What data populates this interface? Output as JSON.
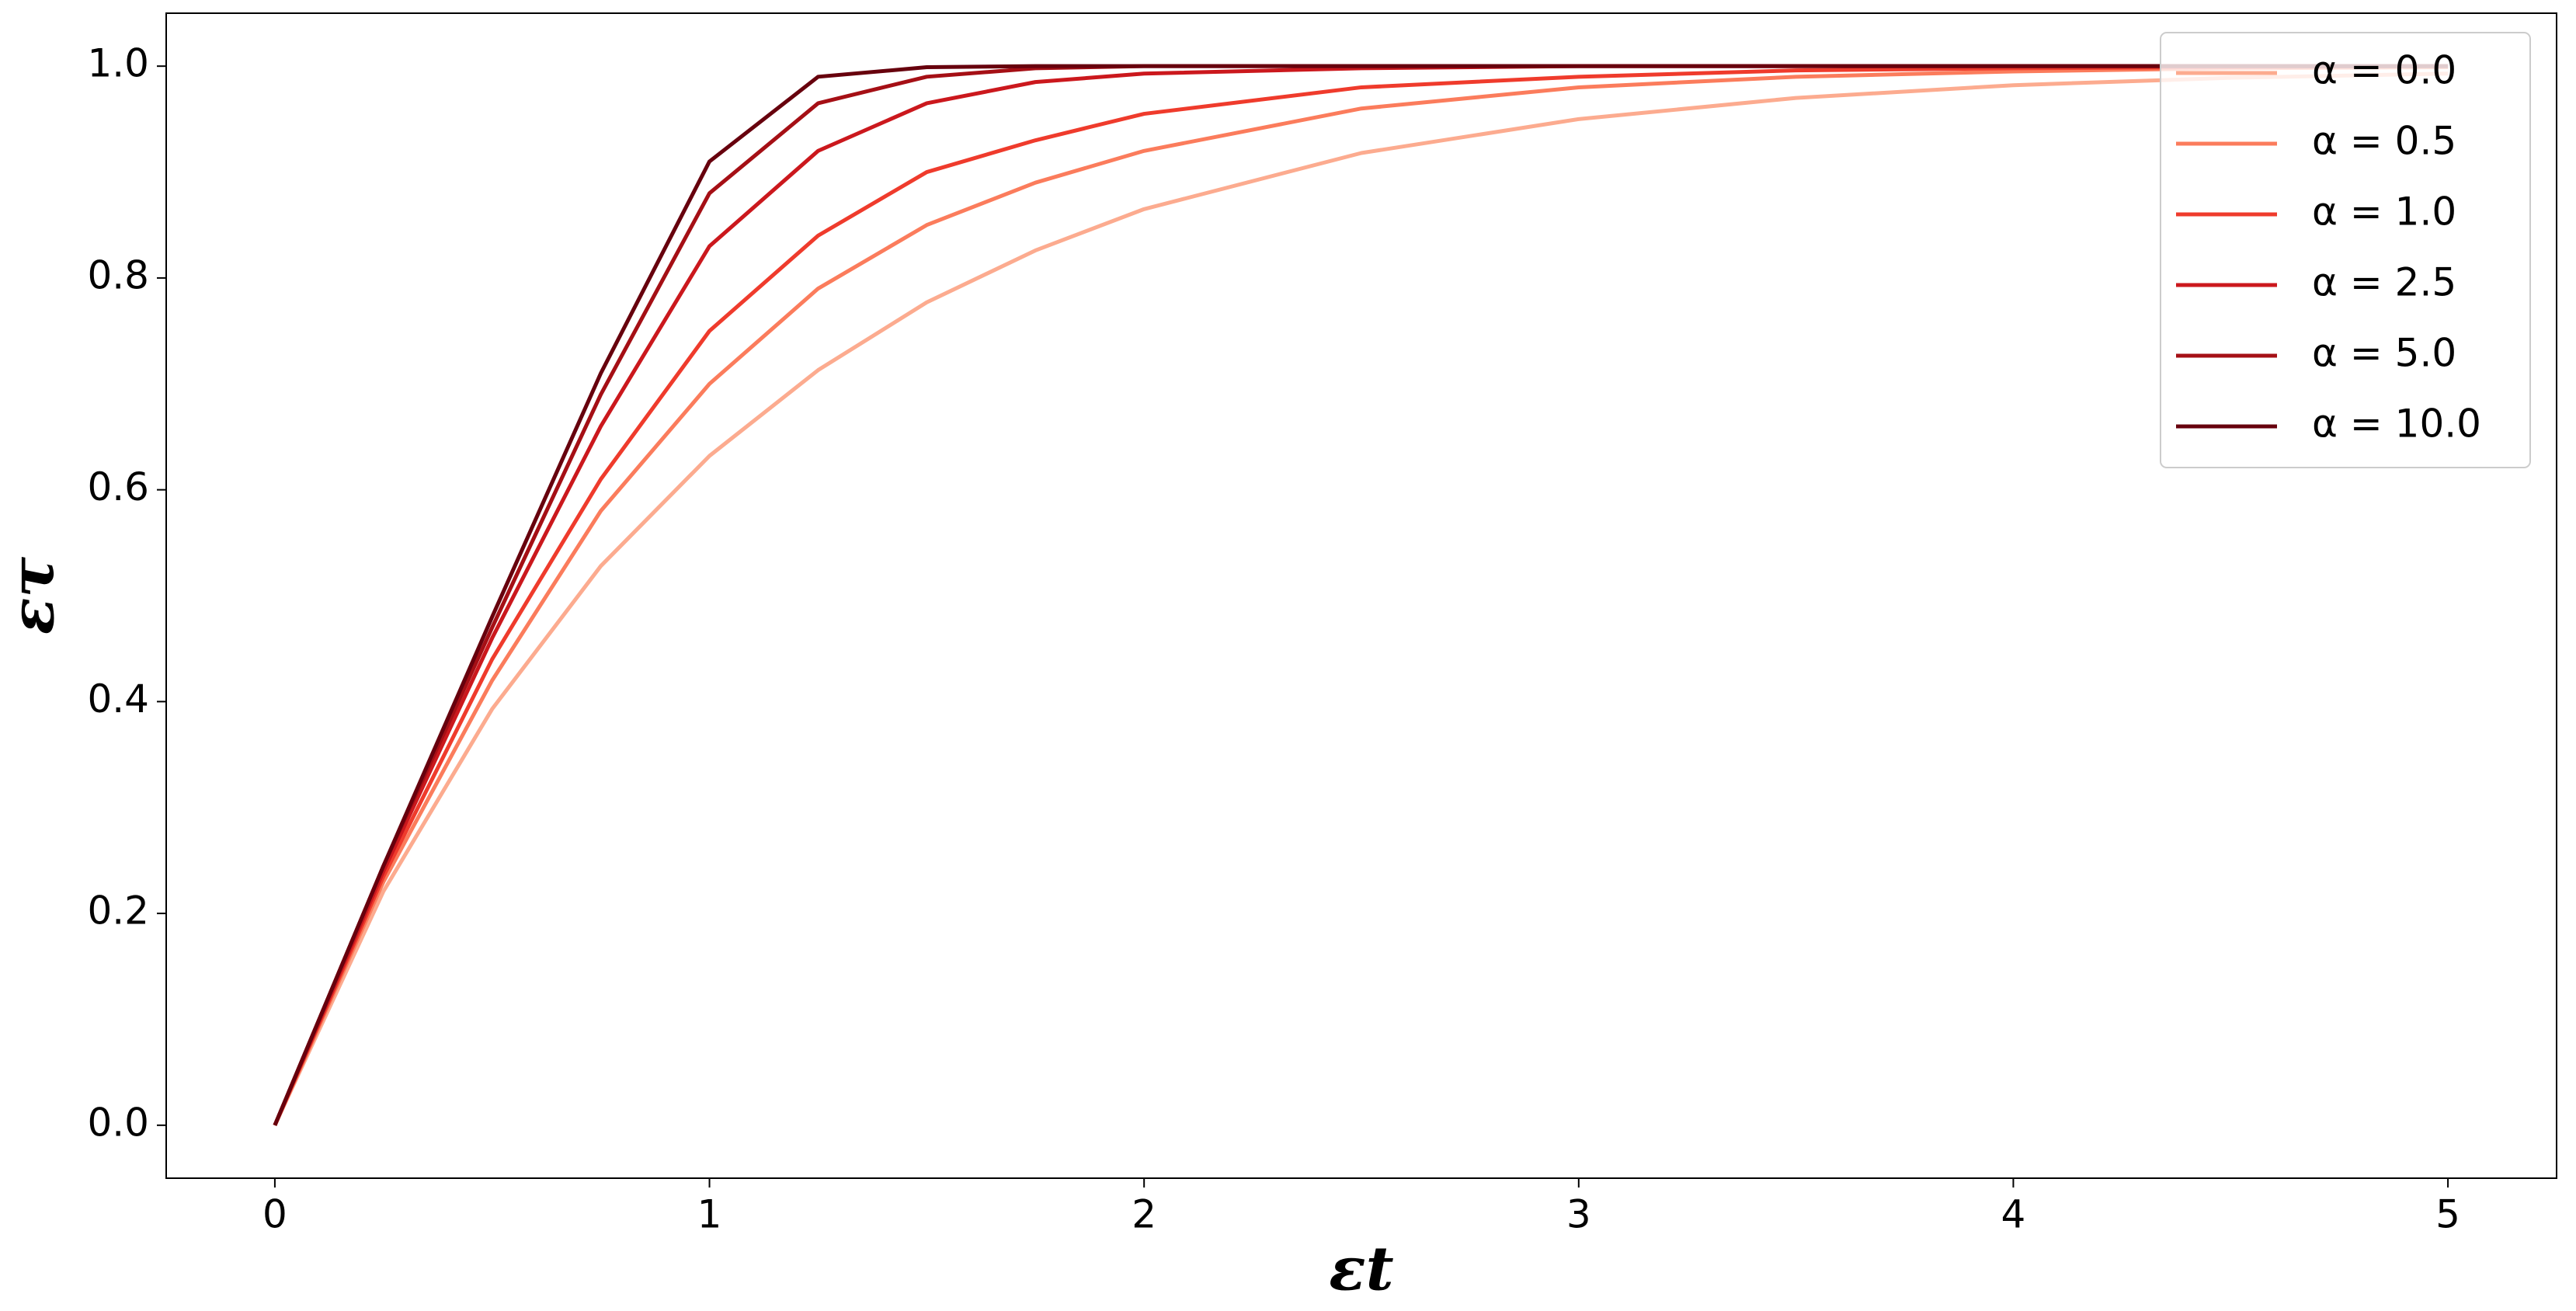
{
  "chart_data": {
    "type": "line",
    "x_label": "εt",
    "y_label": "ετ",
    "x": [
      0,
      0.25,
      0.5,
      0.75,
      1,
      1.25,
      1.5,
      1.75,
      2,
      2.5,
      3,
      3.5,
      4,
      4.5,
      5
    ],
    "series": [
      {
        "name": "α = 0.0",
        "color": "#fcab8f",
        "values": [
          0,
          0.221,
          0.393,
          0.528,
          0.632,
          0.713,
          0.777,
          0.826,
          0.865,
          0.918,
          0.95,
          0.97,
          0.982,
          0.989,
          0.993
        ]
      },
      {
        "name": "α = 0.5",
        "color": "#fb7c5c",
        "values": [
          0,
          0.23,
          0.42,
          0.58,
          0.7,
          0.79,
          0.85,
          0.89,
          0.92,
          0.96,
          0.98,
          0.99,
          0.995,
          0.998,
          0.999
        ]
      },
      {
        "name": "α = 1.0",
        "color": "#ef3b2c",
        "values": [
          0,
          0.235,
          0.44,
          0.61,
          0.75,
          0.84,
          0.9,
          0.93,
          0.955,
          0.98,
          0.99,
          0.996,
          0.998,
          0.999,
          1.0
        ]
      },
      {
        "name": "α = 2.5",
        "color": "#cb181d",
        "values": [
          0,
          0.24,
          0.46,
          0.66,
          0.83,
          0.92,
          0.965,
          0.985,
          0.993,
          0.998,
          1.0,
          1.0,
          1.0,
          1.0,
          1.0
        ]
      },
      {
        "name": "α = 5.0",
        "color": "#a50f15",
        "values": [
          0,
          0.245,
          0.47,
          0.69,
          0.88,
          0.965,
          0.99,
          0.998,
          1.0,
          1.0,
          1.0,
          1.0,
          1.0,
          1.0,
          1.0
        ]
      },
      {
        "name": "α = 10.0",
        "color": "#67000d",
        "values": [
          0,
          0.245,
          0.48,
          0.71,
          0.91,
          0.99,
          0.999,
          1.0,
          1.0,
          1.0,
          1.0,
          1.0,
          1.0,
          1.0,
          1.0
        ]
      }
    ],
    "xlim": [
      -0.25,
      5.25
    ],
    "ylim": [
      -0.05,
      1.05
    ],
    "xticks": [
      0,
      1,
      2,
      3,
      4,
      5
    ],
    "yticks": [
      {
        "value": 0,
        "label": "0.0"
      },
      {
        "value": 0.2,
        "label": "0.2"
      },
      {
        "value": 0.4,
        "label": "0.4"
      },
      {
        "value": 0.6,
        "label": "0.6"
      },
      {
        "value": 0.8,
        "label": "0.8"
      },
      {
        "value": 1,
        "label": "1.0"
      }
    ],
    "grid": false,
    "legend": "upper right"
  }
}
